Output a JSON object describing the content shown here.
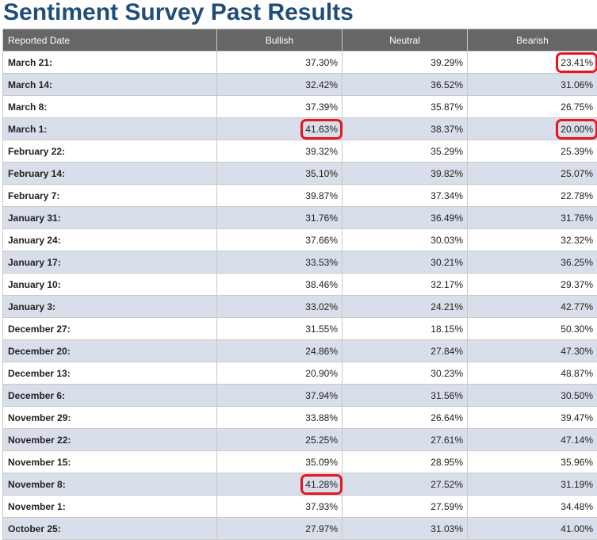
{
  "title": "Sentiment Survey Past Results",
  "columns": [
    "Reported Date",
    "Bullish",
    "Neutral",
    "Bearish"
  ],
  "highlight_color": "#e8141e",
  "rows": [
    {
      "date": "March 21:",
      "bullish": "37.30%",
      "neutral": "39.29%",
      "bearish": "23.41%",
      "highlight": [
        "bearish"
      ]
    },
    {
      "date": "March 14:",
      "bullish": "32.42%",
      "neutral": "36.52%",
      "bearish": "31.06%",
      "highlight": []
    },
    {
      "date": "March 8:",
      "bullish": "37.39%",
      "neutral": "35.87%",
      "bearish": "26.75%",
      "highlight": []
    },
    {
      "date": "March 1:",
      "bullish": "41.63%",
      "neutral": "38.37%",
      "bearish": "20.00%",
      "highlight": [
        "bullish",
        "bearish"
      ]
    },
    {
      "date": "February 22:",
      "bullish": "39.32%",
      "neutral": "35.29%",
      "bearish": "25.39%",
      "highlight": []
    },
    {
      "date": "February 14:",
      "bullish": "35.10%",
      "neutral": "39.82%",
      "bearish": "25.07%",
      "highlight": []
    },
    {
      "date": "February 7:",
      "bullish": "39.87%",
      "neutral": "37.34%",
      "bearish": "22.78%",
      "highlight": []
    },
    {
      "date": "January 31:",
      "bullish": "31.76%",
      "neutral": "36.49%",
      "bearish": "31.76%",
      "highlight": []
    },
    {
      "date": "January 24:",
      "bullish": "37.66%",
      "neutral": "30.03%",
      "bearish": "32.32%",
      "highlight": []
    },
    {
      "date": "January 17:",
      "bullish": "33.53%",
      "neutral": "30.21%",
      "bearish": "36.25%",
      "highlight": []
    },
    {
      "date": "January 10:",
      "bullish": "38.46%",
      "neutral": "32.17%",
      "bearish": "29.37%",
      "highlight": []
    },
    {
      "date": "January 3:",
      "bullish": "33.02%",
      "neutral": "24.21%",
      "bearish": "42.77%",
      "highlight": []
    },
    {
      "date": "December 27:",
      "bullish": "31.55%",
      "neutral": "18.15%",
      "bearish": "50.30%",
      "highlight": []
    },
    {
      "date": "December 20:",
      "bullish": "24.86%",
      "neutral": "27.84%",
      "bearish": "47.30%",
      "highlight": []
    },
    {
      "date": "December 13:",
      "bullish": "20.90%",
      "neutral": "30.23%",
      "bearish": "48.87%",
      "highlight": []
    },
    {
      "date": "December 6:",
      "bullish": "37.94%",
      "neutral": "31.56%",
      "bearish": "30.50%",
      "highlight": []
    },
    {
      "date": "November 29:",
      "bullish": "33.88%",
      "neutral": "26.64%",
      "bearish": "39.47%",
      "highlight": []
    },
    {
      "date": "November 22:",
      "bullish": "25.25%",
      "neutral": "27.61%",
      "bearish": "47.14%",
      "highlight": []
    },
    {
      "date": "November 15:",
      "bullish": "35.09%",
      "neutral": "28.95%",
      "bearish": "35.96%",
      "highlight": []
    },
    {
      "date": "November 8:",
      "bullish": "41.28%",
      "neutral": "27.52%",
      "bearish": "31.19%",
      "highlight": [
        "bullish"
      ]
    },
    {
      "date": "November 1:",
      "bullish": "37.93%",
      "neutral": "27.59%",
      "bearish": "34.48%",
      "highlight": []
    },
    {
      "date": "October 25:",
      "bullish": "27.97%",
      "neutral": "31.03%",
      "bearish": "41.00%",
      "highlight": []
    }
  ]
}
